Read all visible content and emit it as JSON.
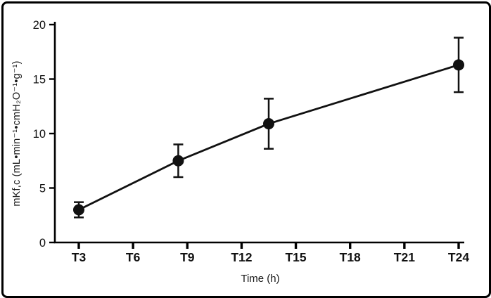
{
  "figure": {
    "background": "#ffffff",
    "frame_color": "#000000"
  },
  "chart_data": {
    "type": "line",
    "title": "",
    "xlabel": "Time (h)",
    "ylabel": "mKf,c (mL•min⁻¹•cmH₂O⁻¹•g⁻¹)",
    "xlim": [
      3,
      24
    ],
    "ylim": [
      0,
      20
    ],
    "x_tick_values": [
      3,
      6,
      9,
      12,
      15,
      18,
      21,
      24
    ],
    "x_tick_labels": [
      "T3",
      "T6",
      "T9",
      "T12",
      "T15",
      "T18",
      "T21",
      "T24"
    ],
    "y_ticks": [
      0,
      5,
      10,
      15,
      20
    ],
    "grid": false,
    "legend": false,
    "series": [
      {
        "name": "mKf,c",
        "x": [
          3,
          8.5,
          13.5,
          24
        ],
        "y": [
          3.0,
          7.5,
          10.9,
          16.3
        ],
        "yerr": [
          0.7,
          1.5,
          2.3,
          2.5
        ],
        "marker": "circle",
        "color": "#111111"
      }
    ]
  }
}
